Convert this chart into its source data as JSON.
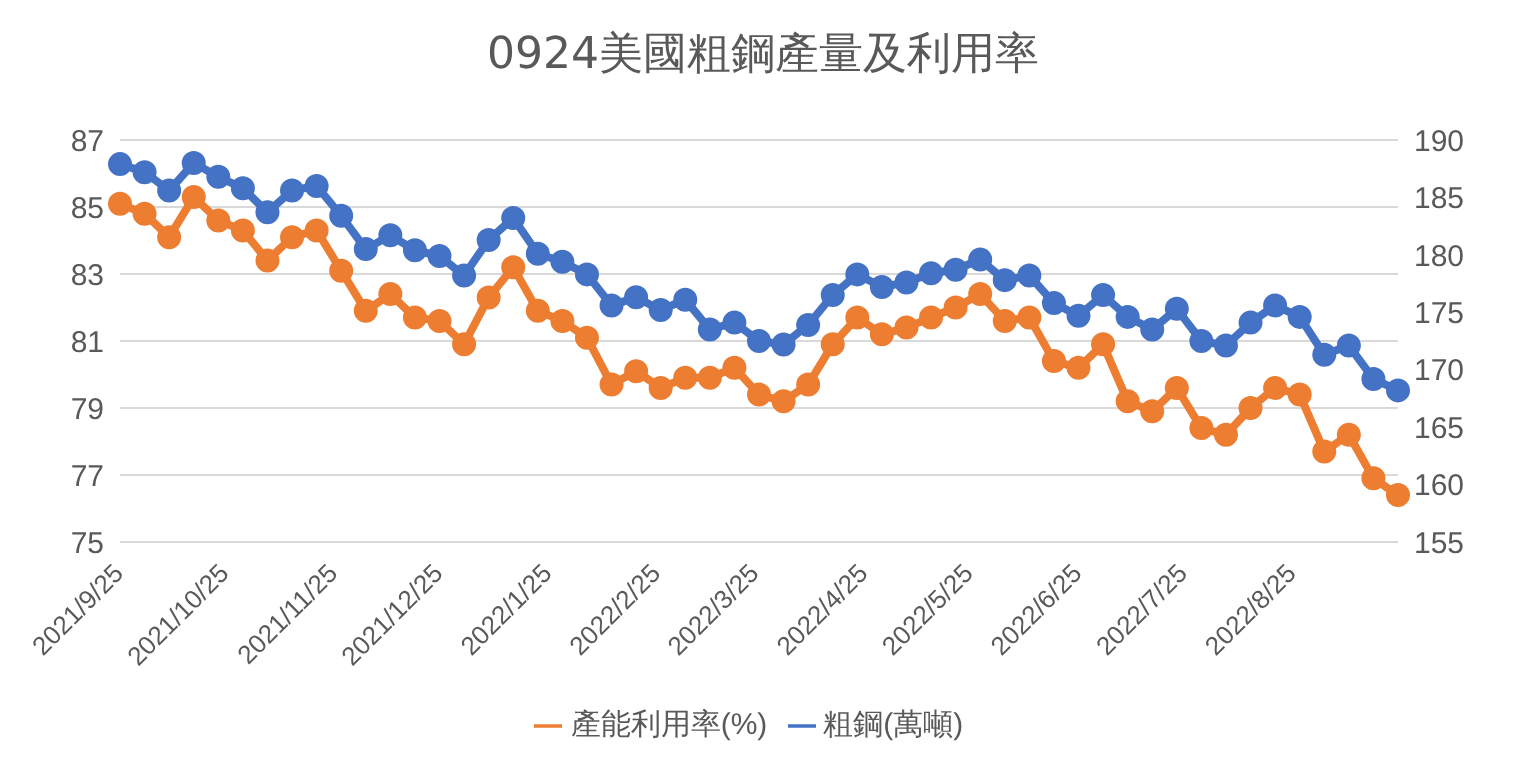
{
  "chart_data": {
    "type": "line",
    "title": "0924美國粗鋼產量及利用率",
    "x": [
      "2021-09-25",
      "2021-10-02",
      "2021-10-09",
      "2021-10-16",
      "2021-10-23",
      "2021-10-30",
      "2021-11-06",
      "2021-11-13",
      "2021-11-20",
      "2021-11-27",
      "2021-12-04",
      "2021-12-11",
      "2021-12-18",
      "2021-12-25",
      "2022-01-01",
      "2022-01-08",
      "2022-01-15",
      "2022-01-22",
      "2022-01-29",
      "2022-02-05",
      "2022-02-12",
      "2022-02-19",
      "2022-02-26",
      "2022-03-05",
      "2022-03-12",
      "2022-03-19",
      "2022-03-26",
      "2022-04-02",
      "2022-04-09",
      "2022-04-16",
      "2022-04-23",
      "2022-04-30",
      "2022-05-07",
      "2022-05-14",
      "2022-05-21",
      "2022-05-28",
      "2022-06-04",
      "2022-06-11",
      "2022-06-18",
      "2022-06-25",
      "2022-07-02",
      "2022-07-09",
      "2022-07-16",
      "2022-07-23",
      "2022-07-30",
      "2022-08-06",
      "2022-08-13",
      "2022-08-20",
      "2022-08-27",
      "2022-09-03",
      "2022-09-10",
      "2022-09-17",
      "2022-09-24"
    ],
    "series": [
      {
        "name": "產能利用率(%)",
        "color": "#ed7d31",
        "values": [
          85.1,
          84.8,
          84.1,
          85.3,
          84.6,
          84.3,
          83.4,
          84.1,
          84.3,
          83.1,
          81.9,
          82.4,
          81.7,
          81.6,
          80.9,
          82.3,
          83.2,
          81.9,
          81.6,
          81.1,
          79.7,
          80.1,
          79.6,
          79.9,
          79.9,
          80.2,
          79.4,
          79.2,
          79.7,
          80.9,
          81.7,
          81.2,
          81.4,
          81.7,
          82.0,
          82.4,
          81.6,
          81.7,
          80.4,
          80.2,
          80.9,
          79.2,
          78.9,
          79.6,
          78.4,
          78.2,
          79.0,
          79.6,
          79.4,
          77.7,
          78.2,
          76.9,
          76.4
        ]
      },
      {
        "name": "粗鋼(萬噸)",
        "color": "#4472c4",
        "axis": "y2",
        "values": [
          187.9,
          187.2,
          185.6,
          188.0,
          186.8,
          185.8,
          183.7,
          185.6,
          186.0,
          183.4,
          180.5,
          181.7,
          180.4,
          179.9,
          178.2,
          181.3,
          183.2,
          180.1,
          179.4,
          178.3,
          175.6,
          176.3,
          175.2,
          176.1,
          173.5,
          174.1,
          172.5,
          172.2,
          173.9,
          176.5,
          178.3,
          177.2,
          177.6,
          178.4,
          178.7,
          179.6,
          177.8,
          178.2,
          175.8,
          174.7,
          176.5,
          174.6,
          173.5,
          175.3,
          172.5,
          172.1,
          174.1,
          175.6,
          174.6,
          171.3,
          172.1,
          169.2,
          168.2
        ]
      }
    ],
    "xlim": [
      "2021-09-25",
      "2022-09-24"
    ],
    "xticks": [
      {
        "value": "2021-09-25",
        "label": "2021/9/25"
      },
      {
        "value": "2021-10-25",
        "label": "2021/10/25"
      },
      {
        "value": "2021-11-25",
        "label": "2021/11/25"
      },
      {
        "value": "2021-12-25",
        "label": "2021/12/25"
      },
      {
        "value": "2022-01-25",
        "label": "2022/1/25"
      },
      {
        "value": "2022-02-25",
        "label": "2022/2/25"
      },
      {
        "value": "2022-03-25",
        "label": "2022/3/25"
      },
      {
        "value": "2022-04-25",
        "label": "2022/4/25"
      },
      {
        "value": "2022-05-25",
        "label": "2022/5/25"
      },
      {
        "value": "2022-06-25",
        "label": "2022/6/25"
      },
      {
        "value": "2022-07-25",
        "label": "2022/7/25"
      },
      {
        "value": "2022-08-25",
        "label": "2022/8/25"
      }
    ],
    "ylim": [
      75,
      87
    ],
    "yticks": [
      75,
      77,
      79,
      81,
      83,
      85,
      87
    ],
    "y2lim": [
      155,
      190
    ],
    "y2ticks": [
      155,
      160,
      165,
      170,
      175,
      180,
      185,
      190
    ],
    "grid": "y",
    "legend": "bottom",
    "marker": "circle",
    "line_style": "solid"
  }
}
